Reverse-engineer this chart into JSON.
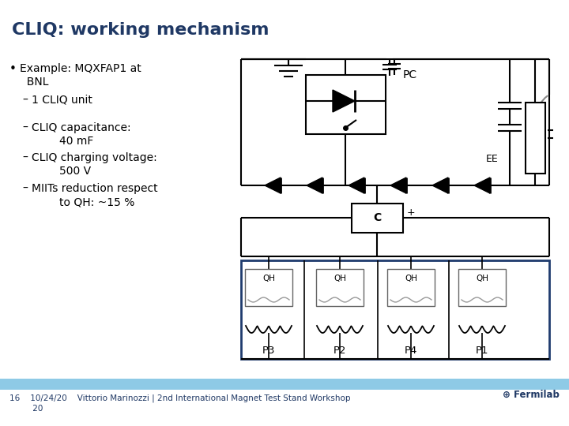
{
  "title": "CLIQ: working mechanism",
  "title_color": "#1F3864",
  "title_fontsize": 16,
  "bg_color": "#FFFFFF",
  "bullet_header": "Example: MQXFAP1 at\n    BNL",
  "sub_bullets": [
    "1 CLIQ unit",
    "CLIQ capacitance:\n        40 mF",
    "CLIQ charging voltage:\n        500 V",
    "MIITs reduction respect\n        to QH: ~15 %"
  ],
  "footer_bar_color": "#8ECAE6",
  "footer_text_left": "16    10/24/20    Vittorio Marinozzi | 2nd International Magnet Test Stand Workshop\n         20",
  "footer_color": "#1F3864",
  "circuit_color": "#000000",
  "circuit_blue": "#1F3B6E",
  "pc_label": "PC",
  "ee_label": "EE",
  "c_label": "C",
  "qh_labels": [
    "P3",
    "P2",
    "P4",
    "P1"
  ]
}
